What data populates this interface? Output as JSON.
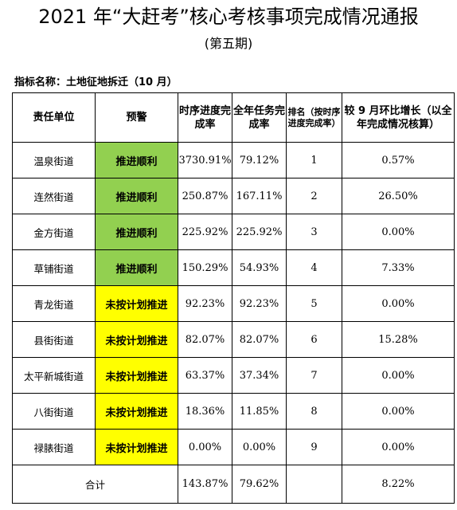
{
  "colors": {
    "green": "#92d050",
    "yellow": "#ffff00"
  },
  "title": "2021 年“大赶考”核心考核事项完成情况通报",
  "subtitle": "(第五期)",
  "indicator": "指标名称：土地征地拆迁（10 月）",
  "headers": {
    "unit": "责任单位",
    "warning": "预警",
    "progress_rate": "时序进度完成率",
    "annual_rate": "全年任务完成率",
    "rank": "排名（按时序进度完成率）",
    "growth": "较 9 月环比增长（以全年完成情况核算）"
  },
  "rows": [
    {
      "unit": "温泉街道",
      "warning": "推进顺利",
      "status": "green",
      "progress_rate": "3730.91%",
      "annual_rate": "79.12%",
      "rank": "1",
      "growth": "0.57%"
    },
    {
      "unit": "连然街道",
      "warning": "推进顺利",
      "status": "green",
      "progress_rate": "250.87%",
      "annual_rate": "167.11%",
      "rank": "2",
      "growth": "26.50%"
    },
    {
      "unit": "金方街道",
      "warning": "推进顺利",
      "status": "green",
      "progress_rate": "225.92%",
      "annual_rate": "225.92%",
      "rank": "3",
      "growth": "0.00%"
    },
    {
      "unit": "草铺街道",
      "warning": "推进顺利",
      "status": "green",
      "progress_rate": "150.29%",
      "annual_rate": "54.93%",
      "rank": "4",
      "growth": "7.33%"
    },
    {
      "unit": "青龙街道",
      "warning": "未按计划推进",
      "status": "yellow",
      "progress_rate": "92.23%",
      "annual_rate": "92.23%",
      "rank": "5",
      "growth": "0.00%"
    },
    {
      "unit": "县街街道",
      "warning": "未按计划推进",
      "status": "yellow",
      "progress_rate": "82.07%",
      "annual_rate": "82.07%",
      "rank": "6",
      "growth": "15.28%"
    },
    {
      "unit": "太平新城街道",
      "warning": "未按计划推进",
      "status": "yellow",
      "progress_rate": "63.37%",
      "annual_rate": "37.34%",
      "rank": "7",
      "growth": "0.00%"
    },
    {
      "unit": "八街街道",
      "warning": "未按计划推进",
      "status": "yellow",
      "progress_rate": "18.36%",
      "annual_rate": "11.85%",
      "rank": "8",
      "growth": "0.00%"
    },
    {
      "unit": "禄脿街道",
      "warning": "未按计划推进",
      "status": "yellow",
      "progress_rate": "0.00%",
      "annual_rate": "0.00%",
      "rank": "9",
      "growth": "0.00%"
    }
  ],
  "total": {
    "label": "合计",
    "progress_rate": "143.87%",
    "annual_rate": "79.62%",
    "growth": "8.22%"
  }
}
